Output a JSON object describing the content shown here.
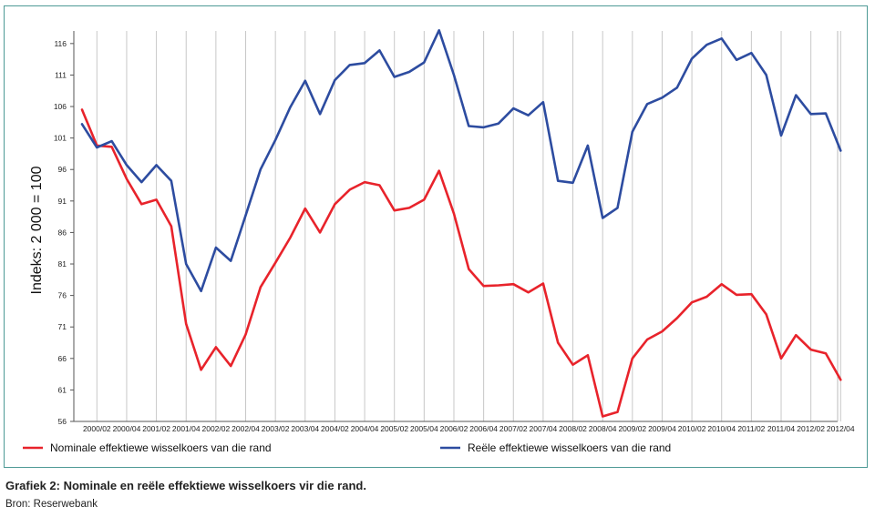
{
  "chart_data": {
    "type": "line",
    "ylabel": "Indeks: 2 000 = 100",
    "xlabel": "",
    "ylim": [
      56,
      118
    ],
    "yticks": [
      56,
      61,
      66,
      71,
      76,
      81,
      86,
      91,
      96,
      101,
      106,
      111,
      116
    ],
    "x_tick_labels": [
      "2000/02",
      "2000/04",
      "2001/02",
      "2001/04",
      "2002/02",
      "2002/04",
      "2003/02",
      "2003/04",
      "2004/02",
      "2004/04",
      "2005/02",
      "2005/04",
      "2006/02",
      "2006/04",
      "2007/02",
      "2007/04",
      "2008/02",
      "2008/04",
      "2009/02",
      "2009/04",
      "2010/02",
      "2010/04",
      "2011/02",
      "2011/04",
      "2012/02",
      "2012/04"
    ],
    "quarters": [
      "2000/01",
      "2000/02",
      "2000/03",
      "2000/04",
      "2001/01",
      "2001/02",
      "2001/03",
      "2001/04",
      "2002/01",
      "2002/02",
      "2002/03",
      "2002/04",
      "2003/01",
      "2003/02",
      "2003/03",
      "2003/04",
      "2004/01",
      "2004/02",
      "2004/03",
      "2004/04",
      "2005/01",
      "2005/02",
      "2005/03",
      "2005/04",
      "2006/01",
      "2006/02",
      "2006/03",
      "2006/04",
      "2007/01",
      "2007/02",
      "2007/03",
      "2007/04",
      "2008/01",
      "2008/02",
      "2008/03",
      "2008/04",
      "2009/01",
      "2009/02",
      "2009/03",
      "2009/04",
      "2010/01",
      "2010/02",
      "2010/03",
      "2010/04",
      "2011/01",
      "2011/02",
      "2011/03",
      "2011/04",
      "2012/01",
      "2012/02",
      "2012/03",
      "2012/04"
    ],
    "grid": "vertical",
    "legend_position": "bottom",
    "series": [
      {
        "name": "Nominale effektiewe wisselkoers van die rand",
        "color": "#e8232b",
        "values": [
          105.5,
          99.8,
          99.6,
          94.5,
          90.5,
          91.2,
          87.0,
          71.5,
          64.2,
          67.8,
          64.8,
          69.8,
          77.3,
          81.2,
          85.2,
          89.8,
          86.0,
          90.5,
          92.8,
          94.0,
          93.5,
          89.5,
          89.9,
          91.2,
          95.8,
          89.0,
          80.2,
          77.5,
          77.6,
          77.8,
          76.5,
          77.9,
          68.5,
          65.0,
          66.5,
          56.8,
          57.5,
          66.0,
          69.0,
          70.3,
          72.4,
          74.9,
          75.8,
          77.8,
          76.1,
          76.2,
          73.0,
          66.0,
          69.7,
          67.4,
          66.8,
          62.6
        ]
      },
      {
        "name": "Reële effektiewe wisselkoers van die rand",
        "color": "#2d4ca0",
        "values": [
          103.2,
          99.5,
          100.5,
          96.7,
          94.0,
          96.7,
          94.2,
          81.0,
          76.7,
          83.6,
          81.5,
          88.7,
          96.0,
          100.7,
          105.9,
          110.1,
          104.8,
          110.2,
          112.6,
          112.9,
          114.9,
          110.7,
          111.5,
          113.0,
          118.1,
          111.0,
          102.9,
          102.7,
          103.3,
          105.7,
          104.6,
          106.7,
          94.2,
          93.9,
          99.8,
          88.3,
          89.9,
          102.0,
          106.4,
          107.4,
          109.0,
          113.6,
          115.8,
          116.8,
          113.4,
          114.5,
          111.0,
          101.4,
          107.8,
          104.8,
          104.9,
          99.0
        ]
      }
    ]
  },
  "caption": "Grafiek 2: Nominale en reële effektiewe wisselkoers vir die rand.",
  "source": "Bron: Reserwebank"
}
